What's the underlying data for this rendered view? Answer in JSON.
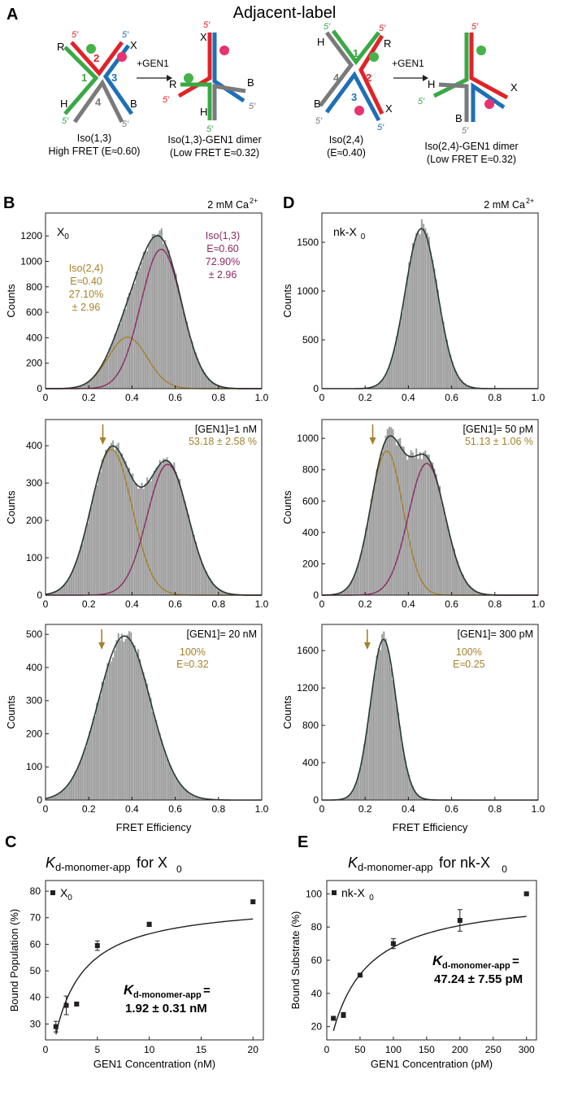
{
  "colors": {
    "red": "#e0232a",
    "green": "#3aa845",
    "blue": "#1e6fb8",
    "grey": "#7a7a7a",
    "gold": "#a5812a",
    "magenta": "#8d2a62",
    "bar": "#9a9a9a",
    "fit": "#2a3a36",
    "pinkdot": "#e8336e",
    "greendot": "#46b34a"
  },
  "header": {
    "panel_a": "A",
    "title": "Adjacent-label",
    "gen1_arrow_1": "+GEN1",
    "gen1_arrow_2": "+GEN1",
    "cap1_l1": "Iso(1,3)",
    "cap1_l2": "High FRET (E≈0.60)",
    "cap2_l1": "Iso(1,3)-GEN1 dimer",
    "cap2_l2": "(Low FRET E≈0.32)",
    "cap3_l1": "Iso(2,4)",
    "cap3_l2": "(E≈0.40)",
    "cap4_l1": "Iso(2,4)-GEN1 dimer",
    "cap4_l2": "(Low FRET E≈0.32)",
    "strand_labels": {
      "R": "R",
      "X": "X",
      "H": "H",
      "B": "B",
      "n1": "1",
      "n2": "2",
      "n3": "3",
      "n4": "4",
      "five_prime": "5′"
    }
  },
  "panels": {
    "B": "B",
    "C": "C",
    "D": "D",
    "E": "E"
  },
  "chart_data": [
    {
      "id": "B1",
      "type": "bar",
      "title": "",
      "condition": "2 mM Ca",
      "condition_sup": "2+",
      "sample_label": "X",
      "sample_sub": "0",
      "xlabel": "",
      "ylabel": "Counts",
      "xlim": [
        0,
        1.0
      ],
      "ylim": [
        0,
        1380
      ],
      "xticks": [
        "0",
        "0.2",
        "0.4",
        "0.6",
        "0.8",
        "1.0"
      ],
      "yticks": [
        0,
        200,
        400,
        600,
        800,
        1000,
        1200
      ],
      "components": [
        {
          "name": "Iso(2,4)",
          "center": 0.38,
          "sigma": 0.09,
          "amplitude": 405,
          "color": "gold"
        },
        {
          "name": "Iso(1,3)",
          "center": 0.535,
          "sigma": 0.095,
          "amplitude": 1095,
          "color": "magenta"
        }
      ],
      "annotations": {
        "gold": [
          "Iso(2,4)",
          "E≈0.40",
          "27.10%",
          "± 2.96"
        ],
        "magenta": [
          "Iso(1,3)",
          "E≈0.60",
          "72.90%",
          "± 2.96"
        ]
      }
    },
    {
      "id": "B2",
      "type": "bar",
      "condition": "[GEN1]=1 nM",
      "condition2": "53.18 ± 2.58 %",
      "xlabel": "",
      "ylabel": "Counts",
      "xlim": [
        0,
        1.0
      ],
      "ylim": [
        0,
        470
      ],
      "xticks": [
        "0",
        "0.2",
        "0.4",
        "0.6",
        "0.8",
        "1.0"
      ],
      "yticks": [
        0,
        100,
        200,
        300,
        400
      ],
      "arrow_x": 0.265,
      "components": [
        {
          "name": "low",
          "center": 0.305,
          "sigma": 0.095,
          "amplitude": 390,
          "color": "gold"
        },
        {
          "name": "high",
          "center": 0.565,
          "sigma": 0.095,
          "amplitude": 350,
          "color": "magenta"
        }
      ]
    },
    {
      "id": "B3",
      "type": "bar",
      "condition": "[GEN1]= 20 nM",
      "condition2": "100%",
      "condition3": "E≈0.32",
      "xlabel": "FRET Efficiency",
      "ylabel": "Counts",
      "xlim": [
        0,
        1.0
      ],
      "ylim": [
        0,
        530
      ],
      "xticks": [
        "0",
        "0.2",
        "0.4",
        "0.6",
        "0.8",
        "1.0"
      ],
      "yticks": [
        0,
        100,
        200,
        300,
        400,
        500
      ],
      "arrow_x": 0.26,
      "components": [
        {
          "name": "single",
          "center": 0.365,
          "sigma": 0.12,
          "amplitude": 495,
          "color": "fit"
        }
      ]
    },
    {
      "id": "D1",
      "type": "bar",
      "condition": "2 mM Ca",
      "condition_sup": "2+",
      "sample_label": "nk-X",
      "sample_sub": "0",
      "xlabel": "",
      "ylabel": "Counts",
      "xlim": [
        0,
        1.0
      ],
      "ylim": [
        0,
        1800
      ],
      "xticks": [
        "0",
        "0.2",
        "0.4",
        "0.6",
        "0.8",
        "1.0"
      ],
      "yticks": [
        0,
        500,
        1000,
        1500
      ],
      "components": [
        {
          "name": "single",
          "center": 0.46,
          "sigma": 0.075,
          "amplitude": 1640,
          "color": "fit"
        }
      ]
    },
    {
      "id": "D2",
      "type": "bar",
      "condition": "[GEN1]= 50 pM",
      "condition2": "51.13 ± 1.06 %",
      "xlabel": "",
      "ylabel": "Counts",
      "xlim": [
        0,
        1.0
      ],
      "ylim": [
        0,
        1120
      ],
      "xticks": [
        "0",
        "0.2",
        "0.4",
        "0.6",
        "0.8",
        "1.0"
      ],
      "yticks": [
        0,
        200,
        400,
        600,
        800,
        1000
      ],
      "arrow_x": 0.235,
      "components": [
        {
          "name": "low",
          "center": 0.3,
          "sigma": 0.075,
          "amplitude": 920,
          "color": "gold"
        },
        {
          "name": "high",
          "center": 0.485,
          "sigma": 0.085,
          "amplitude": 840,
          "color": "magenta"
        }
      ]
    },
    {
      "id": "D3",
      "type": "bar",
      "condition": "[GEN1]= 300 pM",
      "condition2": "100%",
      "condition3": "E≈0.25",
      "xlabel": "FRET Efficiency",
      "ylabel": "Counts",
      "xlim": [
        0,
        1.0
      ],
      "ylim": [
        0,
        1880
      ],
      "xticks": [
        "0",
        "0.2",
        "0.4",
        "0.6",
        "0.8",
        "1.0"
      ],
      "yticks": [
        0,
        400,
        800,
        1200,
        1600
      ],
      "arrow_x": 0.21,
      "components": [
        {
          "name": "single",
          "center": 0.285,
          "sigma": 0.06,
          "amplitude": 1720,
          "color": "fit"
        }
      ]
    },
    {
      "id": "C",
      "type": "scatter",
      "title_k": "K",
      "title_sub": "d-monomer-app",
      "title_rest": "for X",
      "title_rest_sub": "0",
      "legend": "X",
      "legend_sub": "0",
      "xlabel": "GEN1 Concentration (nM)",
      "ylabel": "Bound Population (%)",
      "xlim": [
        0,
        21
      ],
      "ylim": [
        24,
        84
      ],
      "xticks": [
        0,
        5,
        10,
        15,
        20
      ],
      "yticks": [
        30,
        40,
        50,
        60,
        70,
        80
      ],
      "x": [
        1,
        2,
        3,
        5,
        10,
        20
      ],
      "y": [
        29.0,
        37.0,
        37.5,
        59.5,
        67.5,
        76.0
      ],
      "err": [
        2.0,
        3.5,
        0.5,
        1.8,
        0.8,
        0.5
      ],
      "fit": {
        "model": "bmax*x/(kd+x)",
        "kd": 1.92,
        "bmax": 76.2,
        "x0": 1.0,
        "x1": 20
      },
      "kd_label_k": "K",
      "kd_label_sub": "d-monomer-app",
      "kd_label_eq": " =",
      "kd_value": "1.92 ± 0.31 nM"
    },
    {
      "id": "E",
      "type": "scatter",
      "title_k": "K",
      "title_sub": "d-monomer-app",
      "title_rest": "for nk-X",
      "title_rest_sub": "0",
      "legend": "nk-X",
      "legend_sub": "0",
      "xlabel": "GEN1 Concentration (pM)",
      "ylabel": "Bound Substrate (%)",
      "xlim": [
        0,
        315
      ],
      "ylim": [
        12,
        108
      ],
      "xticks": [
        0,
        50,
        100,
        150,
        200,
        250,
        300
      ],
      "yticks": [
        20,
        40,
        60,
        80,
        100
      ],
      "x": [
        10,
        25,
        50,
        100,
        200,
        300
      ],
      "y": [
        25.0,
        27.0,
        51.0,
        70.0,
        84.0,
        100.0
      ],
      "err": [
        0.5,
        1.5,
        0.5,
        3.0,
        6.5,
        0.5
      ],
      "fit": {
        "model": "bmax*x/(kd+x)",
        "kd": 47.24,
        "bmax": 100.0,
        "x0": 10,
        "x1": 300
      },
      "kd_label_k": "K",
      "kd_label_sub": "d-monomer-app",
      "kd_label_eq": " =",
      "kd_value": "47.24 ± 7.55 pM"
    }
  ]
}
